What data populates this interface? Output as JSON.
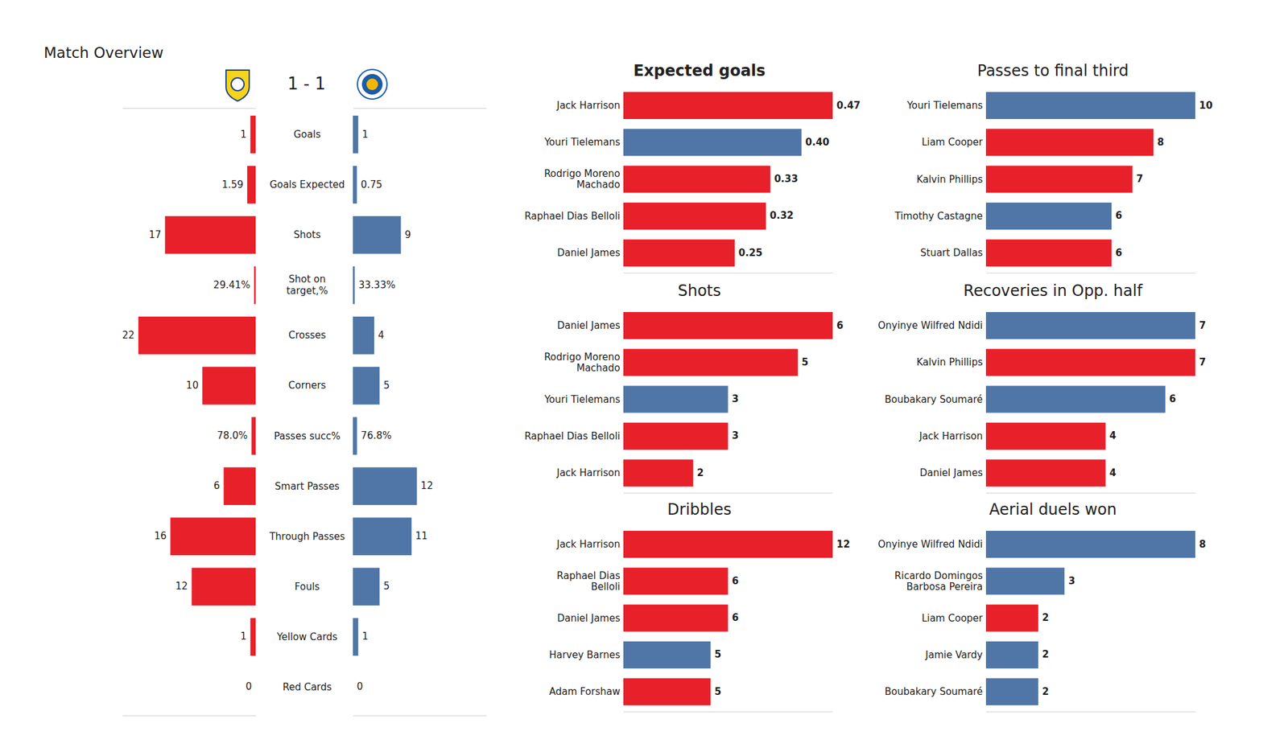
{
  "chart_data": [
    {
      "type": "bar",
      "title": "Match Overview",
      "subtitle": "1 - 1",
      "orientation": "horizontal",
      "categories": [
        "Goals",
        "Goals Expected",
        "Shots",
        "Crosses",
        "Corners",
        "Smart Passes",
        "Through Passes",
        "Fouls",
        "Yellow Cards",
        "Red Cards"
      ],
      "series": [
        {
          "color": "#e8202a",
          "values": [
            1,
            1.59,
            17,
            22,
            10,
            6,
            16,
            12,
            1,
            0
          ]
        },
        {
          "color": "#4f76a6",
          "values": [
            1,
            0.75,
            9,
            4,
            5,
            12,
            11,
            5,
            1,
            0
          ]
        }
      ],
      "xlim": [
        0,
        25
      ],
      "data_labels": true,
      "tick_labels": "y"
    },
    {
      "type": "bar",
      "orientation": "horizontal",
      "categories": [
        "Shot on\ntarget,%",
        "Passes succ%"
      ],
      "series": [
        {
          "color": "#e8202a",
          "values": [
            29.41,
            78.0
          ],
          "value_labels": [
            "29.41%",
            "78.0%"
          ]
        },
        {
          "color": "#4f76a6",
          "values": [
            33.33,
            76.8
          ],
          "value_labels": [
            "33.33%",
            "76.8%"
          ]
        }
      ],
      "xlim": [
        0,
        2500
      ],
      "data_labels": true,
      "tick_labels": "y"
    },
    {
      "type": "bar",
      "title": "Expected goals",
      "orientation": "horizontal",
      "categories": [
        "Jack Harrison",
        "Youri Tielemans",
        "Rodrigo Moreno\nMachado",
        "Raphael Dias Belloli",
        "Daniel James"
      ],
      "values": [
        0.47,
        0.4,
        0.33,
        0.32,
        0.25
      ],
      "value_labels": [
        "0.47",
        "0.40",
        "0.33",
        "0.32",
        "0.25"
      ],
      "colors": [
        "#e8202a",
        "#4f76a6",
        "#e8202a",
        "#e8202a",
        "#e8202a"
      ],
      "xlim": [
        0,
        0.47
      ],
      "data_labels": true,
      "tick_labels": "y"
    },
    {
      "type": "bar",
      "title": "Shots",
      "orientation": "horizontal",
      "categories": [
        "Daniel James",
        "Rodrigo Moreno\nMachado",
        "Youri Tielemans",
        "Raphael Dias Belloli",
        "Jack Harrison"
      ],
      "values": [
        6,
        5,
        3,
        3,
        2
      ],
      "colors": [
        "#e8202a",
        "#e8202a",
        "#4f76a6",
        "#e8202a",
        "#e8202a"
      ],
      "xlim": [
        0,
        6
      ],
      "data_labels": true,
      "tick_labels": "y"
    },
    {
      "type": "bar",
      "title": "Dribbles",
      "orientation": "horizontal",
      "categories": [
        "Jack Harrison",
        "Raphael Dias\nBelloli",
        "Daniel James",
        "Harvey Barnes",
        "Adam Forshaw"
      ],
      "values": [
        12,
        6,
        6,
        5,
        5
      ],
      "colors": [
        "#e8202a",
        "#e8202a",
        "#e8202a",
        "#4f76a6",
        "#e8202a"
      ],
      "xlim": [
        0,
        12
      ],
      "data_labels": true,
      "tick_labels": "y"
    },
    {
      "type": "bar",
      "title": "Passes to final third",
      "orientation": "horizontal",
      "categories": [
        "Youri Tielemans",
        "Liam Cooper",
        "Kalvin Phillips",
        "Timothy Castagne",
        "Stuart Dallas"
      ],
      "values": [
        10,
        8,
        7,
        6,
        6
      ],
      "colors": [
        "#4f76a6",
        "#e8202a",
        "#e8202a",
        "#4f76a6",
        "#e8202a"
      ],
      "xlim": [
        0,
        10
      ],
      "data_labels": true,
      "tick_labels": "y"
    },
    {
      "type": "bar",
      "title": "Recoveries in Opp. half",
      "orientation": "horizontal",
      "categories": [
        "Onyinye Wilfred Ndidi",
        "Kalvin Phillips",
        "Boubakary Soumaré",
        "Jack Harrison",
        "Daniel James"
      ],
      "values": [
        7,
        7,
        6,
        4,
        4
      ],
      "colors": [
        "#4f76a6",
        "#e8202a",
        "#4f76a6",
        "#e8202a",
        "#e8202a"
      ],
      "xlim": [
        0,
        7
      ],
      "data_labels": true,
      "tick_labels": "y"
    },
    {
      "type": "bar",
      "title": "Aerial duels won",
      "orientation": "horizontal",
      "categories": [
        "Onyinye Wilfred Ndidi",
        "Ricardo Domingos\nBarbosa Pereira",
        "Liam Cooper",
        "Jamie Vardy",
        "Boubakary Soumaré"
      ],
      "values": [
        8,
        3,
        2,
        2,
        2
      ],
      "colors": [
        "#4f76a6",
        "#4f76a6",
        "#e8202a",
        "#4f76a6",
        "#4f76a6"
      ],
      "xlim": [
        0,
        8
      ],
      "data_labels": true,
      "tick_labels": "y"
    }
  ]
}
